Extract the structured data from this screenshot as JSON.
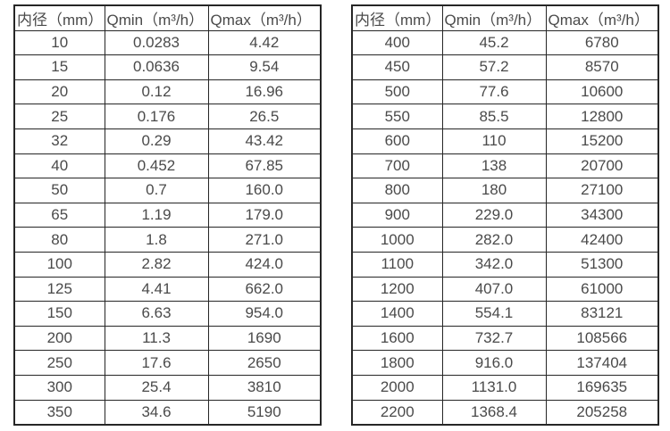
{
  "tables": [
    {
      "name": "flow-table-small-diameters",
      "headers": [
        "内径（mm）",
        "Qmin（m³/h）",
        "Qmax（m³/h）"
      ],
      "rows": [
        [
          "10",
          "0.0283",
          "4.42"
        ],
        [
          "15",
          "0.0636",
          "9.54"
        ],
        [
          "20",
          "0.12",
          "16.96"
        ],
        [
          "25",
          "0.176",
          "26.5"
        ],
        [
          "32",
          "0.29",
          "43.42"
        ],
        [
          "40",
          "0.452",
          "67.85"
        ],
        [
          "50",
          "0.7",
          "160.0"
        ],
        [
          "65",
          "1.19",
          "179.0"
        ],
        [
          "80",
          "1.8",
          "271.0"
        ],
        [
          "100",
          "2.82",
          "424.0"
        ],
        [
          "125",
          "4.41",
          "662.0"
        ],
        [
          "150",
          "6.63",
          "954.0"
        ],
        [
          "200",
          "11.3",
          "1690"
        ],
        [
          "250",
          "17.6",
          "2650"
        ],
        [
          "300",
          "25.4",
          "3810"
        ],
        [
          "350",
          "34.6",
          "5190"
        ]
      ]
    },
    {
      "name": "flow-table-large-diameters",
      "headers": [
        "内径（mm）",
        "Qmin（m³/h）",
        "Qmax（m³/h）"
      ],
      "rows": [
        [
          "400",
          "45.2",
          "6780"
        ],
        [
          "450",
          "57.2",
          "8570"
        ],
        [
          "500",
          "77.6",
          "10600"
        ],
        [
          "550",
          "85.5",
          "12800"
        ],
        [
          "600",
          "110",
          "15200"
        ],
        [
          "700",
          "138",
          "20700"
        ],
        [
          "800",
          "180",
          "27100"
        ],
        [
          "900",
          "229.0",
          "34300"
        ],
        [
          "1000",
          "282.0",
          "42400"
        ],
        [
          "1100",
          "342.0",
          "51300"
        ],
        [
          "1200",
          "407.0",
          "61000"
        ],
        [
          "1400",
          "554.1",
          "83121"
        ],
        [
          "1600",
          "732.7",
          "108566"
        ],
        [
          "1800",
          "916.0",
          "137404"
        ],
        [
          "2000",
          "1131.0",
          "169635"
        ],
        [
          "2200",
          "1368.4",
          "205258"
        ]
      ]
    }
  ],
  "colors": {
    "text": "#4a4a4a",
    "border": "#262626",
    "background": "#ffffff"
  }
}
